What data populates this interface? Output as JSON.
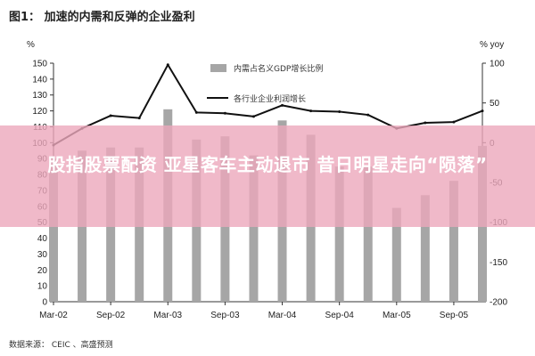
{
  "chart_data": {
    "type": "bar+line",
    "title": "图1： 加速的内需和反弹的企业盈利",
    "left_axis_unit": "%",
    "right_axis_unit": "% yoy",
    "left_ylim": [
      0,
      150
    ],
    "left_ticks": [
      "0",
      "10",
      "20",
      "30",
      "40",
      "50",
      "60",
      "70",
      "80",
      "90",
      "100",
      "110",
      "120",
      "130",
      "140",
      "150"
    ],
    "right_ylim": [
      -200,
      100
    ],
    "right_ticks": [
      "-200",
      "-150",
      "-100",
      "-50",
      "0",
      "50",
      "100"
    ],
    "categories": [
      "Mar-02",
      "Jun-02",
      "Sep-02",
      "Dec-02",
      "Mar-03",
      "Jun-03",
      "Sep-03",
      "Dec-03",
      "Mar-04",
      "Jun-04",
      "Sep-04",
      "Dec-04",
      "Mar-05",
      "Jun-05",
      "Sep-05",
      "Dec-05"
    ],
    "x_tick_labels": [
      "Mar-02",
      "Sep-02",
      "Mar-03",
      "Sep-03",
      "Mar-04",
      "Sep-04",
      "Mar-05",
      "Sep-05"
    ],
    "series": [
      {
        "name": "内需占名义GDP增长比例",
        "axis": "left",
        "kind": "bar",
        "values": [
          90,
          95,
          97,
          97,
          121,
          102,
          104,
          92,
          114,
          105,
          85,
          85,
          59,
          67,
          76,
          98
        ]
      },
      {
        "name": "各行业企业利润增长",
        "axis": "right",
        "kind": "line",
        "values": [
          -3,
          18,
          34,
          31,
          98,
          38,
          37,
          33,
          47,
          40,
          39,
          35,
          18,
          25,
          26,
          40
        ]
      }
    ],
    "grid": false,
    "legend_position": "top-center",
    "bar_color": "#a6a6a6",
    "line_color": "#111111"
  },
  "overlay": {
    "headline": "股指股票配资 亚星客车主动退市 昔日明星走向“陨落”",
    "color": "#eca8bc"
  },
  "source_note": "数据来源： CEIC 、高盛预测"
}
